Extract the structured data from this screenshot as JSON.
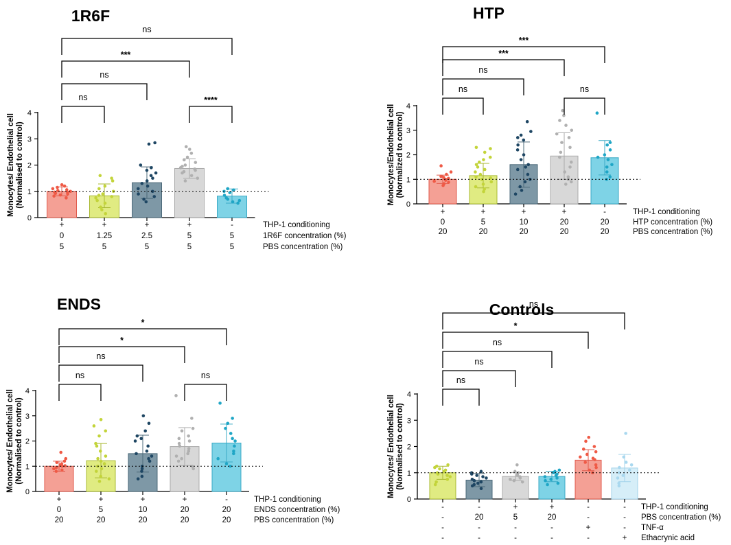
{
  "chart_data": [
    {
      "type": "bar",
      "title": "1R6F",
      "ylabel_lines": [
        "Monocytes/ Endothelial cell",
        "(Normalised to control)"
      ],
      "ylim": [
        0,
        4
      ],
      "yticks": [
        "0",
        "1",
        "2",
        "3",
        "4"
      ],
      "reference_line": 1,
      "bars": [
        {
          "mean": 1.0,
          "sd": 0.17,
          "fill": "#f4a095",
          "stroke": "#e05a4c",
          "dot": "#ef5a46",
          "points": [
            0.75,
            0.82,
            0.86,
            0.9,
            0.92,
            0.95,
            0.97,
            1.0,
            1.03,
            1.06,
            1.1,
            1.15,
            1.2,
            1.25
          ]
        },
        {
          "mean": 0.83,
          "sd": 0.45,
          "fill": "#e0eb82",
          "stroke": "#a9b932",
          "dot": "#c3d43a",
          "points": [
            0.15,
            0.3,
            0.4,
            0.55,
            0.65,
            0.75,
            0.8,
            0.85,
            0.9,
            1.0,
            1.1,
            1.2,
            1.4,
            1.5,
            1.6
          ]
        },
        {
          "mean": 1.33,
          "sd": 0.6,
          "fill": "#7e98a6",
          "stroke": "#4b6878",
          "dot": "#1e4663",
          "points": [
            0.6,
            0.7,
            0.8,
            0.9,
            1.0,
            1.1,
            1.2,
            1.3,
            1.4,
            1.5,
            1.6,
            1.7,
            1.8,
            1.9,
            2.0,
            2.8,
            2.85
          ]
        },
        {
          "mean": 1.87,
          "sd": 0.37,
          "fill": "#d8d8d8",
          "stroke": "#aaaaaa",
          "dot": "#b0b0b0",
          "points": [
            1.4,
            1.5,
            1.6,
            1.7,
            1.75,
            1.8,
            1.85,
            1.9,
            1.95,
            2.0,
            2.1,
            2.2,
            2.3,
            2.45,
            2.6,
            2.7
          ]
        },
        {
          "mean": 0.82,
          "sd": 0.27,
          "fill": "#7ed3e6",
          "stroke": "#3aaac5",
          "dot": "#1fa6c6",
          "points": [
            0.55,
            0.6,
            0.65,
            0.7,
            0.75,
            0.85,
            0.95,
            1.0,
            1.05,
            1.1
          ]
        }
      ],
      "conditions": [
        {
          "label": "THP-1 conditioning",
          "values": [
            "+",
            "+",
            "+",
            "+",
            "-"
          ]
        },
        {
          "label": "1R6F concentration (%)",
          "values": [
            "0",
            "1.25",
            "2.5",
            "5",
            "5"
          ]
        },
        {
          "label": "PBS concentration (%)",
          "values": [
            "5",
            "5",
            "5",
            "5",
            "5"
          ]
        }
      ],
      "comparisons": [
        {
          "bars": [
            0,
            1
          ],
          "label": "ns"
        },
        {
          "bars": [
            0,
            2
          ],
          "label": "ns"
        },
        {
          "bars": [
            0,
            3
          ],
          "label": "***"
        },
        {
          "bars": [
            0,
            4
          ],
          "label": "ns"
        },
        {
          "bars": [
            3,
            4
          ],
          "label": "****"
        }
      ]
    },
    {
      "type": "bar",
      "title": "HTP",
      "ylabel_lines": [
        "Monocytes/Endothelial cell",
        "(Normalized to control)"
      ],
      "ylim": [
        0,
        4
      ],
      "yticks": [
        "0",
        "1",
        "2",
        "3",
        "4"
      ],
      "reference_line": 1,
      "bars": [
        {
          "mean": 1.0,
          "sd": 0.17,
          "fill": "#f4a095",
          "stroke": "#e05a4c",
          "dot": "#ef5a46",
          "points": [
            0.75,
            0.82,
            0.88,
            0.92,
            0.96,
            1.0,
            1.04,
            1.08,
            1.12,
            1.2,
            1.3,
            1.55
          ]
        },
        {
          "mean": 1.15,
          "sd": 0.5,
          "fill": "#e0eb82",
          "stroke": "#a9b932",
          "dot": "#c3d43a",
          "points": [
            0.5,
            0.6,
            0.7,
            0.8,
            0.9,
            1.0,
            1.05,
            1.1,
            1.2,
            1.3,
            1.4,
            1.5,
            1.6,
            1.7,
            1.8,
            1.9,
            2.1,
            2.25,
            2.3
          ]
        },
        {
          "mean": 1.6,
          "sd": 0.92,
          "fill": "#7e98a6",
          "stroke": "#4b6878",
          "dot": "#1e4663",
          "points": [
            0.4,
            0.55,
            0.7,
            0.9,
            1.0,
            1.2,
            1.4,
            1.5,
            1.6,
            1.8,
            2.0,
            2.2,
            2.4,
            2.6,
            2.7,
            2.8,
            2.95,
            3.35
          ]
        },
        {
          "mean": 1.95,
          "sd": 0.95,
          "fill": "#d8d8d8",
          "stroke": "#aaaaaa",
          "dot": "#b0b0b0",
          "points": [
            0.8,
            0.9,
            1.0,
            1.1,
            1.3,
            1.5,
            1.7,
            1.9,
            2.1,
            2.3,
            2.5,
            2.7,
            2.85,
            3.0,
            3.2,
            3.4,
            3.6,
            3.8
          ]
        },
        {
          "mean": 1.88,
          "sd": 0.7,
          "fill": "#7ed3e6",
          "stroke": "#3aaac5",
          "dot": "#1fa6c6",
          "points": [
            1.0,
            1.1,
            1.3,
            1.5,
            1.6,
            1.8,
            1.9,
            2.0,
            2.2,
            2.4,
            2.5,
            3.7
          ]
        }
      ],
      "conditions": [
        {
          "label": "THP-1 conditioning",
          "values": [
            "+",
            "+",
            "+",
            "+",
            "-"
          ]
        },
        {
          "label": "HTP concentration (%)",
          "values": [
            "0",
            "5",
            "10",
            "20",
            "20"
          ]
        },
        {
          "label": "PBS concentration (%)",
          "values": [
            "20",
            "20",
            "20",
            "20",
            "20"
          ]
        }
      ],
      "comparisons": [
        {
          "bars": [
            0,
            1
          ],
          "label": "ns"
        },
        {
          "bars": [
            0,
            2
          ],
          "label": "ns"
        },
        {
          "bars": [
            0,
            3
          ],
          "label": "***"
        },
        {
          "bars": [
            0,
            4
          ],
          "label": "***"
        },
        {
          "bars": [
            3,
            4
          ],
          "label": "ns"
        }
      ]
    },
    {
      "type": "bar",
      "title": "ENDS",
      "ylabel_lines": [
        "Monocytes/ Endothelial cell",
        "(Normalised to control)"
      ],
      "ylim": [
        0,
        4
      ],
      "yticks": [
        "0",
        "1",
        "2",
        "3",
        "4"
      ],
      "reference_line": 1,
      "bars": [
        {
          "mean": 1.0,
          "sd": 0.2,
          "fill": "#f4a095",
          "stroke": "#e05a4c",
          "dot": "#ef5a46",
          "points": [
            0.8,
            0.85,
            0.9,
            0.95,
            1.0,
            1.02,
            1.05,
            1.1,
            1.15,
            1.2,
            1.3,
            1.55
          ]
        },
        {
          "mean": 1.22,
          "sd": 0.68,
          "fill": "#e0eb82",
          "stroke": "#a9b932",
          "dot": "#c3d43a",
          "points": [
            0.4,
            0.5,
            0.6,
            0.8,
            0.9,
            1.0,
            1.1,
            1.2,
            1.3,
            1.4,
            1.6,
            1.8,
            1.9,
            2.2,
            2.4,
            2.6,
            2.85
          ]
        },
        {
          "mean": 1.5,
          "sd": 0.73,
          "fill": "#7e98a6",
          "stroke": "#4b6878",
          "dot": "#1e4663",
          "points": [
            0.5,
            0.6,
            0.8,
            0.9,
            1.0,
            1.2,
            1.3,
            1.4,
            1.5,
            1.6,
            1.8,
            2.0,
            2.1,
            2.2,
            2.4,
            2.7,
            3.0
          ]
        },
        {
          "mean": 1.78,
          "sd": 0.75,
          "fill": "#d8d8d8",
          "stroke": "#aaaaaa",
          "dot": "#b0b0b0",
          "points": [
            0.9,
            1.0,
            1.2,
            1.3,
            1.4,
            1.5,
            1.6,
            1.7,
            1.8,
            1.9,
            2.0,
            2.1,
            2.2,
            2.4,
            2.5,
            2.9,
            3.8
          ]
        },
        {
          "mean": 1.92,
          "sd": 0.75,
          "fill": "#7ed3e6",
          "stroke": "#3aaac5",
          "dot": "#1fa6c6",
          "points": [
            1.0,
            1.1,
            1.3,
            1.5,
            1.6,
            1.8,
            2.0,
            2.1,
            2.3,
            2.5,
            2.7,
            2.9,
            3.5
          ]
        }
      ],
      "conditions": [
        {
          "label": "THP-1 conditioning",
          "values": [
            "+",
            "+",
            "+",
            "+",
            "-"
          ]
        },
        {
          "label": "ENDS concentration (%)",
          "values": [
            "0",
            "5",
            "10",
            "20",
            "20"
          ]
        },
        {
          "label": "PBS concentration (%)",
          "values": [
            "20",
            "20",
            "20",
            "20",
            "20"
          ]
        }
      ],
      "comparisons": [
        {
          "bars": [
            0,
            1
          ],
          "label": "ns"
        },
        {
          "bars": [
            0,
            2
          ],
          "label": "ns"
        },
        {
          "bars": [
            0,
            3
          ],
          "label": "*"
        },
        {
          "bars": [
            0,
            4
          ],
          "label": "*"
        },
        {
          "bars": [
            3,
            4
          ],
          "label": "ns"
        }
      ]
    },
    {
      "type": "bar",
      "title": "Controls",
      "ylabel_lines": [
        "Monocytes/ Endothelial cell",
        "(Normalised to control)"
      ],
      "ylim": [
        0,
        4
      ],
      "yticks": [
        "0",
        "1",
        "2",
        "3",
        "4"
      ],
      "reference_line": 1,
      "bars": [
        {
          "mean": 1.0,
          "sd": 0.25,
          "fill": "#e0eb82",
          "stroke": "#a9b932",
          "dot": "#c3d43a",
          "points": [
            0.55,
            0.65,
            0.75,
            0.85,
            0.9,
            0.95,
            1.0,
            1.05,
            1.1,
            1.15,
            1.2,
            1.25,
            1.3
          ]
        },
        {
          "mean": 0.72,
          "sd": 0.25,
          "fill": "#7e98a6",
          "stroke": "#4b6878",
          "dot": "#1e4663",
          "points": [
            0.4,
            0.5,
            0.55,
            0.6,
            0.65,
            0.7,
            0.75,
            0.8,
            0.85,
            0.9,
            0.95,
            1.0,
            1.05
          ]
        },
        {
          "mean": 0.86,
          "sd": 0.15,
          "fill": "#d8d8d8",
          "stroke": "#aaaaaa",
          "dot": "#b0b0b0",
          "points": [
            0.65,
            0.7,
            0.75,
            0.8,
            0.85,
            0.9,
            0.95,
            1.0,
            1.05,
            1.3
          ]
        },
        {
          "mean": 0.86,
          "sd": 0.2,
          "fill": "#7ed3e6",
          "stroke": "#3aaac5",
          "dot": "#1fa6c6",
          "points": [
            0.55,
            0.6,
            0.7,
            0.75,
            0.8,
            0.85,
            0.9,
            0.95,
            1.0,
            1.05,
            1.1
          ]
        },
        {
          "mean": 1.48,
          "sd": 0.4,
          "fill": "#f4a095",
          "stroke": "#e05a4c",
          "dot": "#ef5a46",
          "points": [
            1.0,
            1.1,
            1.2,
            1.3,
            1.4,
            1.5,
            1.55,
            1.6,
            1.7,
            1.8,
            1.9,
            2.0,
            2.2,
            2.35
          ]
        },
        {
          "mean": 1.18,
          "sd": 0.52,
          "fill": "#d6eef8",
          "stroke": "#a3d3ea",
          "dot": "#a9d8ef",
          "points": [
            0.5,
            0.6,
            0.8,
            0.9,
            1.0,
            1.1,
            1.2,
            1.3,
            1.4,
            1.6,
            2.5
          ]
        }
      ],
      "conditions": [
        {
          "label": "THP-1 conditioning",
          "values": [
            "-",
            "-",
            "+",
            "+",
            "-",
            "-"
          ]
        },
        {
          "label": "PBS concentration (%)",
          "values": [
            "-",
            "20",
            "5",
            "20",
            "-",
            "-"
          ]
        },
        {
          "label": "TNF-α",
          "values": [
            "-",
            "-",
            "-",
            "-",
            "+",
            "-"
          ]
        },
        {
          "label": "Ethacrynic acid",
          "values": [
            "-",
            "-",
            "-",
            "-",
            "-",
            "+"
          ]
        }
      ],
      "comparisons": [
        {
          "bars": [
            0,
            1
          ],
          "label": "ns"
        },
        {
          "bars": [
            0,
            2
          ],
          "label": "ns"
        },
        {
          "bars": [
            0,
            3
          ],
          "label": "ns"
        },
        {
          "bars": [
            0,
            4
          ],
          "label": "*"
        },
        {
          "bars": [
            0,
            5
          ],
          "label": "ns"
        }
      ]
    }
  ]
}
